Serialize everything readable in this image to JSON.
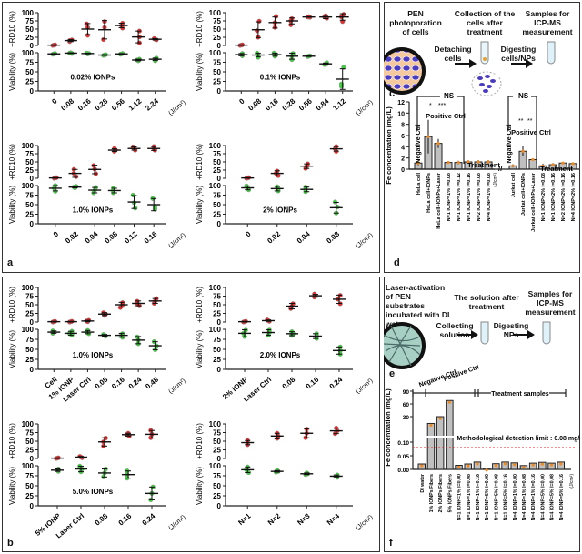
{
  "panels": {
    "a_label": "a",
    "b_label": "b",
    "c_label": "c",
    "d_label": "d",
    "e_label": "e",
    "f_label": "f"
  },
  "schematic_c": {
    "step1": "PEN photoporation of cells",
    "arrow1": "Detaching cells",
    "step2": "Collection of the cells after treatment",
    "arrow2": "Digesting cells/NPs",
    "step3": "Samples for ICP-MS measurement"
  },
  "schematic_e": {
    "step1": "Laser-activation of PEN substrates incubated with DI water",
    "arrow1": "Collecting solution",
    "step2": "The solution after treatment",
    "arrow2": "Digesting NPs",
    "step3": "Samples for ICP-MS measurement"
  },
  "colors": {
    "rd10": "#e03030",
    "viability": "#44cc44",
    "bar": "#c0c0c0",
    "dot": "#f08a20",
    "limit": "#e02020"
  },
  "chart_data": [
    {
      "id": "a1",
      "type": "scatter",
      "annotation": "0.02% IONPs",
      "categories": [
        "0",
        "0.08",
        "0.16",
        "0.28",
        "0.56",
        "1.12",
        "2.24"
      ],
      "unit": "(J/cm²)",
      "top": {
        "ylabel": "+RD10 (%)",
        "ylim": [
          0,
          100
        ],
        "ticks": [
          0,
          25,
          50,
          75,
          100
        ],
        "means": [
          1,
          15,
          50,
          48,
          61,
          26,
          19
        ],
        "sd": [
          1,
          3,
          17,
          28,
          7,
          18,
          2
        ],
        "points": [
          [
            0,
            1,
            2
          ],
          [
            12,
            15,
            17
          ],
          [
            31,
            55,
            66
          ],
          [
            18,
            55,
            73
          ],
          [
            53,
            61,
            68
          ],
          [
            8,
            26,
            44
          ],
          [
            17,
            19,
            21
          ]
        ]
      },
      "bottom": {
        "ylabel": "Viability (%)",
        "ylim": [
          0,
          100
        ],
        "ticks": [
          0,
          25,
          50,
          75,
          100
        ],
        "means": [
          97,
          99,
          98,
          94,
          97,
          81,
          83
        ],
        "sd": [
          1,
          1,
          1,
          1,
          1,
          2,
          3
        ],
        "points": [
          [
            96,
            97,
            98
          ],
          [
            98,
            99,
            100
          ],
          [
            97,
            98,
            99
          ],
          [
            93,
            94,
            95
          ],
          [
            96,
            97,
            98
          ],
          [
            79,
            81,
            83
          ],
          [
            79,
            83,
            86
          ]
        ]
      }
    },
    {
      "id": "a2",
      "type": "scatter",
      "annotation": "0.1% IONPs",
      "categories": [
        "0",
        "0.08",
        "0.16",
        "0.28",
        "0.56",
        "0.84",
        "1.12"
      ],
      "unit": "(J/cm²)",
      "top": {
        "ylabel": "+RD10 (%)",
        "ylim": [
          0,
          100
        ],
        "ticks": [
          0,
          25,
          50,
          75,
          100
        ],
        "means": [
          1,
          48,
          70,
          75,
          87,
          87,
          87
        ],
        "sd": [
          1,
          24,
          17,
          9,
          1,
          5,
          10
        ],
        "points": [
          [
            0,
            1,
            2
          ],
          [
            25,
            45,
            74
          ],
          [
            55,
            70,
            89
          ],
          [
            63,
            75,
            82
          ],
          [
            86,
            87,
            88
          ],
          [
            83,
            87,
            91
          ],
          [
            73,
            87,
            95
          ]
        ]
      },
      "bottom": {
        "ylabel": "Viability (%)",
        "ylim": [
          0,
          100
        ],
        "ticks": [
          0,
          25,
          50,
          75,
          100
        ],
        "means": [
          95,
          94,
          95,
          91,
          91,
          71,
          31
        ],
        "sd": [
          3,
          5,
          4,
          8,
          1,
          2,
          27
        ],
        "points": [
          [
            92,
            95,
            98
          ],
          [
            88,
            94,
            99
          ],
          [
            91,
            95,
            99
          ],
          [
            82,
            91,
            98
          ],
          [
            90,
            91,
            92
          ],
          [
            69,
            71,
            74
          ],
          [
            12,
            18,
            62
          ]
        ]
      }
    },
    {
      "id": "a3",
      "type": "scatter",
      "annotation": "1.0% IONPs",
      "categories": [
        "0",
        "0.02",
        "0.04",
        "0.08",
        "0.12",
        "0.16"
      ],
      "unit": "(J/cm²)",
      "top": {
        "ylabel": "+RD10 (%)",
        "ylim": [
          0,
          100
        ],
        "ticks": [
          0,
          25,
          50,
          75,
          100
        ],
        "means": [
          1,
          15,
          27,
          86,
          91,
          91
        ],
        "sd": [
          1,
          12,
          13,
          4,
          5,
          6
        ],
        "points": [
          [
            0,
            1,
            2
          ],
          [
            5,
            15,
            27
          ],
          [
            14,
            28,
            39
          ],
          [
            82,
            86,
            91
          ],
          [
            86,
            91,
            96
          ],
          [
            86,
            91,
            97
          ]
        ]
      },
      "bottom": {
        "ylabel": "Viability (%)",
        "ylim": [
          0,
          100
        ],
        "ticks": [
          0,
          25,
          50,
          75,
          100
        ],
        "means": [
          93,
          96,
          88,
          87,
          57,
          50
        ],
        "sd": [
          7,
          2,
          7,
          6,
          17,
          16
        ],
        "points": [
          [
            85,
            93,
            100
          ],
          [
            94,
            96,
            98
          ],
          [
            81,
            88,
            95
          ],
          [
            81,
            87,
            93
          ],
          [
            41,
            55,
            75
          ],
          [
            38,
            44,
            66
          ]
        ]
      }
    },
    {
      "id": "a4",
      "type": "scatter",
      "annotation": "2% IONPs",
      "categories": [
        "0",
        "0.02",
        "0.04",
        "0.08"
      ],
      "unit": "(J/cm²)",
      "top": {
        "ylabel": "+RD10 (%)",
        "ylim": [
          0,
          100
        ],
        "ticks": [
          0,
          25,
          50,
          75,
          100
        ],
        "means": [
          1,
          15,
          37,
          90
        ],
        "sd": [
          1,
          8,
          7,
          7
        ],
        "points": [
          [
            0,
            1,
            2
          ],
          [
            8,
            15,
            22
          ],
          [
            30,
            37,
            44
          ],
          [
            82,
            90,
            97
          ]
        ]
      },
      "bottom": {
        "ylabel": "Viability (%)",
        "ylim": [
          0,
          100
        ],
        "ticks": [
          0,
          25,
          50,
          75,
          100
        ],
        "means": [
          94,
          92,
          90,
          42
        ],
        "sd": [
          5,
          6,
          6,
          14
        ],
        "points": [
          [
            89,
            94,
            99
          ],
          [
            86,
            92,
            97
          ],
          [
            84,
            90,
            96
          ],
          [
            28,
            44,
            57
          ]
        ]
      }
    },
    {
      "id": "b1",
      "type": "scatter",
      "annotation": "1.0% IONPs",
      "categories": [
        "Cell",
        "1% IONP",
        "Laser Ctrl",
        "0.08",
        "0.16",
        "0.24",
        "0.48"
      ],
      "unit": "(J/cm²)",
      "top": {
        "ylabel": "+RD10 (%)",
        "ylim": [
          0,
          100
        ],
        "ticks": [
          0,
          25,
          50,
          75,
          100
        ],
        "means": [
          1,
          1,
          3,
          23,
          50,
          54,
          61
        ],
        "sd": [
          1,
          1,
          2,
          4,
          7,
          7,
          7
        ],
        "points": [
          [
            0,
            1,
            2
          ],
          [
            0,
            1,
            2
          ],
          [
            1,
            3,
            5
          ],
          [
            19,
            23,
            27
          ],
          [
            42,
            50,
            56
          ],
          [
            47,
            54,
            60
          ],
          [
            54,
            61,
            68
          ]
        ]
      },
      "bottom": {
        "ylabel": "Viability (%)",
        "ylim": [
          0,
          100
        ],
        "ticks": [
          0,
          25,
          50,
          75,
          100
        ],
        "means": [
          93,
          90,
          93,
          85,
          85,
          73,
          59
        ],
        "sd": [
          3,
          5,
          4,
          2,
          5,
          9,
          10
        ],
        "points": [
          [
            90,
            93,
            96
          ],
          [
            86,
            90,
            95
          ],
          [
            89,
            93,
            97
          ],
          [
            83,
            85,
            87
          ],
          [
            80,
            85,
            89
          ],
          [
            64,
            73,
            81
          ],
          [
            49,
            59,
            69
          ]
        ]
      }
    },
    {
      "id": "b2",
      "type": "scatter",
      "annotation": "2.0% IONPs",
      "categories": [
        "2% IONP",
        "Laser Ctrl",
        "0.08",
        "0.16",
        "0.24"
      ],
      "unit": "(J/cm²)",
      "top": {
        "ylabel": "+RD10 (%)",
        "ylim": [
          0,
          100
        ],
        "ticks": [
          0,
          25,
          50,
          75,
          100
        ],
        "means": [
          1,
          4,
          46,
          76,
          66
        ],
        "sd": [
          1,
          2,
          8,
          4,
          12
        ],
        "points": [
          [
            0,
            1,
            2
          ],
          [
            2,
            4,
            6
          ],
          [
            39,
            46,
            53
          ],
          [
            72,
            76,
            81
          ],
          [
            53,
            66,
            77
          ]
        ]
      },
      "bottom": {
        "ylabel": "Viability (%)",
        "ylim": [
          0,
          100
        ],
        "ticks": [
          0,
          25,
          50,
          75,
          100
        ],
        "means": [
          90,
          92,
          89,
          83,
          47
        ],
        "sd": [
          9,
          7,
          5,
          6,
          9
        ],
        "points": [
          [
            82,
            90,
            98
          ],
          [
            85,
            92,
            98
          ],
          [
            85,
            89,
            94
          ],
          [
            77,
            83,
            89
          ],
          [
            38,
            47,
            56
          ]
        ]
      }
    },
    {
      "id": "b3",
      "type": "scatter",
      "annotation": "5.0% IONPs",
      "categories": [
        "5% IONP",
        "Laser Ctrl",
        "0.08",
        "0.16",
        "0.24"
      ],
      "unit": "(J/cm²)",
      "top": {
        "ylabel": "+RD10 (%)",
        "ylim": [
          0,
          100
        ],
        "ticks": [
          0,
          25,
          50,
          75,
          100
        ],
        "means": [
          1,
          4,
          48,
          69,
          70
        ],
        "sd": [
          1,
          2,
          12,
          4,
          11
        ],
        "points": [
          [
            0,
            1,
            2
          ],
          [
            2,
            4,
            6
          ],
          [
            36,
            48,
            59
          ],
          [
            65,
            69,
            73
          ],
          [
            60,
            70,
            81
          ]
        ]
      },
      "bottom": {
        "ylabel": "Viability (%)",
        "ylim": [
          0,
          100
        ],
        "ticks": [
          0,
          25,
          50,
          75,
          100
        ],
        "means": [
          89,
          92,
          82,
          78,
          31
        ],
        "sd": [
          3,
          7,
          10,
          9,
          16
        ],
        "points": [
          [
            86,
            89,
            92
          ],
          [
            85,
            92,
            99
          ],
          [
            72,
            82,
            92
          ],
          [
            69,
            78,
            87
          ],
          [
            15,
            31,
            47
          ]
        ]
      }
    },
    {
      "id": "b4",
      "type": "scatter",
      "annotation": "",
      "categories": [
        "N=1",
        "N=2",
        "N=3",
        "N=4"
      ],
      "unit": "(J/cm²)",
      "top": {
        "ylabel": "+RD10 (%)",
        "ylim": [
          0,
          100
        ],
        "ticks": [
          0,
          25,
          50,
          75,
          100
        ],
        "means": [
          46,
          65,
          73,
          80
        ],
        "sd": [
          6,
          8,
          13,
          8
        ],
        "points": [
          [
            40,
            46,
            52
          ],
          [
            58,
            65,
            73
          ],
          [
            60,
            73,
            85
          ],
          [
            72,
            80,
            88
          ]
        ]
      },
      "bottom": {
        "ylabel": "Viability (%)",
        "ylim": [
          0,
          100
        ],
        "ticks": [
          0,
          25,
          50,
          75,
          100
        ],
        "means": [
          90,
          86,
          80,
          74
        ],
        "sd": [
          7,
          2,
          2,
          3
        ],
        "points": [
          [
            83,
            90,
            97
          ],
          [
            84,
            86,
            88
          ],
          [
            78,
            80,
            82
          ],
          [
            71,
            74,
            77
          ]
        ]
      }
    },
    {
      "id": "d",
      "type": "bar",
      "ylabel": "Fe concentration (mg/L)",
      "ylim": [
        0,
        12
      ],
      "ticks": [
        0,
        2,
        4,
        6,
        8,
        10,
        12
      ],
      "groups": [
        {
          "categories": [
            "HeLa cell",
            "HeLa cell+IONPs",
            "HeLa cell+IONPs+Laser",
            "N=1 IONP=1% I=0.08",
            "N=1 IONP=1% I=0.12",
            "N=1 IONP=1% I=0.16",
            "N=2 IONP=1% I=0.08",
            "N=4 IONP=1% I=0.08"
          ],
          "values": [
            1.1,
            5.8,
            4.6,
            1.2,
            1.2,
            1.3,
            1.3,
            1.3
          ],
          "sd": [
            0.4,
            3.0,
            0.8,
            0.2,
            0.3,
            0.3,
            0.3,
            0.3
          ]
        },
        {
          "categories": [
            "Jurkat cell",
            "Jurkat cell+IONPs",
            "Jurkat cell+IONPs+Laser",
            "N=1 IONP=2% I=0.08",
            "N=1 IONP=2% I=0.16",
            "N=2 IONP=2% I=0.16",
            "N=4 IONP=2% I=0.16"
          ],
          "values": [
            0.6,
            3.2,
            1.7,
            0.6,
            0.8,
            1.1,
            1.0
          ],
          "sd": [
            0.3,
            0.9,
            0.2,
            0.4,
            0.3,
            0.2,
            0.2
          ]
        }
      ],
      "unit": "(J/cm²)",
      "annotations": {
        "ns": "NS",
        "positive": "Positive Ctrl",
        "negative": "Negative Ctrl",
        "treatment": "Treatment",
        "sig1": "*",
        "sig2": "***",
        "sig3": "**",
        "sig4": "**"
      }
    },
    {
      "id": "f",
      "type": "bar",
      "ylabel": "Fe concentration (mg/L)",
      "ticks_low": [
        "0.00",
        "0.05",
        "0.10"
      ],
      "ticks_high": [
        "30",
        "60",
        "90"
      ],
      "categories": [
        "DI water",
        "1% IONPs Fibers",
        "2% IONPs Fibers",
        "5% IONPs Fibers",
        "N=1 IONP=1% I=0.00",
        "N=1 IONP=1% I=0.08",
        "N=1 IONP=1% I=0.16",
        "N=1 IONP=5% I=0.00",
        "N=1 IONP=5% I=0.08",
        "N=1 IONP=5% I=0.16",
        "N=4 IONP=1% I=0.00",
        "N=4 IONP=1% I=0.08",
        "N=4 IONP=1% I=0.16",
        "N=4 IONP=5% I=0.00",
        "N=4 IONP=5% I=0.08",
        "N=4 IONP=5% I=0.16"
      ],
      "values": [
        0.02,
        14,
        30,
        68,
        0.015,
        0.02,
        0.027,
        0.004,
        0.021,
        0.027,
        0.024,
        0.014,
        0.023,
        0.026,
        0.023,
        0.027
      ],
      "unit": "(J/cm²)",
      "detection_limit": 0.08,
      "annotations": {
        "limit": "Methodological detection limit : 0.08 mg/L",
        "negative": "Negative Ctrl",
        "positive": "Positive Ctrl",
        "treatment": "Treatment samples"
      }
    }
  ]
}
